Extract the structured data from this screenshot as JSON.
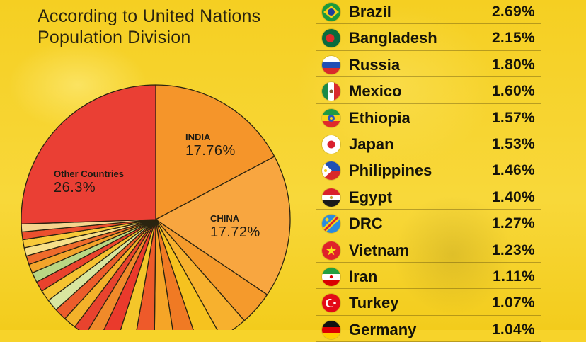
{
  "header": {
    "subtitle_line1": "According to United Nations",
    "subtitle_line2": "Population Division"
  },
  "chart_data": {
    "type": "pie",
    "labelled_slices": [
      {
        "name": "INDIA",
        "value_label": "17.76%"
      },
      {
        "name": "CHINA",
        "value_label": "17.72%"
      },
      {
        "name": "Other Countries",
        "value_label": "26.3%"
      }
    ],
    "slices": [
      {
        "name": "INDIA",
        "value": 17.76,
        "color": "#f5952a"
      },
      {
        "name": "CHINA",
        "value": 17.72,
        "color": "#f8a640"
      },
      {
        "value": 4.22,
        "color": "#f59a2c"
      },
      {
        "value": 3.47,
        "color": "#f7b12e"
      },
      {
        "value": 2.96,
        "color": "#f6c21f"
      },
      {
        "value": 2.87,
        "color": "#f07a24"
      },
      {
        "value": 2.69,
        "color": "#f5a527"
      },
      {
        "value": 2.62,
        "color": "#ee5a2a"
      },
      {
        "value": 2.25,
        "color": "#f4c62a"
      },
      {
        "value": 2.15,
        "color": "#ea3a2c"
      },
      {
        "value": 1.8,
        "color": "#f08a2a"
      },
      {
        "value": 1.6,
        "color": "#e8432e"
      },
      {
        "value": 1.57,
        "color": "#f3b22a"
      },
      {
        "value": 1.53,
        "color": "#ec5d2b"
      },
      {
        "value": 1.46,
        "color": "#d9e6a0"
      },
      {
        "value": 1.4,
        "color": "#f5c331"
      },
      {
        "value": 1.27,
        "color": "#e9422d"
      },
      {
        "value": 1.23,
        "color": "#b9d785"
      },
      {
        "value": 1.11,
        "color": "#f3a42b"
      },
      {
        "value": 1.07,
        "color": "#ee6b2c"
      },
      {
        "value": 1.04,
        "color": "#f7e08a"
      },
      {
        "value": 1.0,
        "color": "#f8c939"
      },
      {
        "value": 0.96,
        "color": "#eb4f2e"
      },
      {
        "value": 0.97,
        "color": "#f6d58e"
      },
      {
        "name": "Other Countries",
        "value": 26.3,
        "color": "#ea3f34"
      }
    ]
  },
  "countries": [
    {
      "name": "Brazil",
      "value": "2.69%",
      "flag": "brazil-flag-icon"
    },
    {
      "name": "Bangladesh",
      "value": "2.15%",
      "flag": "bangladesh-flag-icon"
    },
    {
      "name": "Russia",
      "value": "1.80%",
      "flag": "russia-flag-icon"
    },
    {
      "name": "Mexico",
      "value": "1.60%",
      "flag": "mexico-flag-icon"
    },
    {
      "name": "Ethiopia",
      "value": "1.57%",
      "flag": "ethiopia-flag-icon"
    },
    {
      "name": "Japan",
      "value": "1.53%",
      "flag": "japan-flag-icon"
    },
    {
      "name": "Philippines",
      "value": "1.46%",
      "flag": "philippines-flag-icon"
    },
    {
      "name": "Egypt",
      "value": "1.40%",
      "flag": "egypt-flag-icon"
    },
    {
      "name": "DRC",
      "value": "1.27%",
      "flag": "drc-flag-icon"
    },
    {
      "name": "Vietnam",
      "value": "1.23%",
      "flag": "vietnam-flag-icon"
    },
    {
      "name": "Iran",
      "value": "1.11%",
      "flag": "iran-flag-icon"
    },
    {
      "name": "Turkey",
      "value": "1.07%",
      "flag": "turkey-flag-icon"
    },
    {
      "name": "Germany",
      "value": "1.04%",
      "flag": "germany-flag-icon"
    }
  ]
}
